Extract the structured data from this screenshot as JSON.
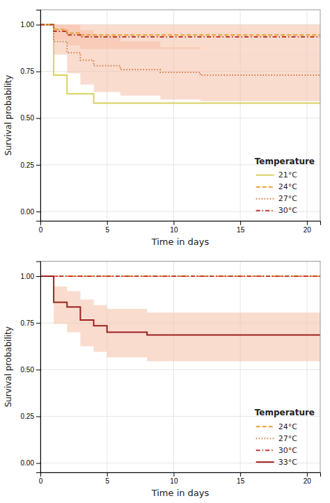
{
  "chart_data": [
    {
      "type": "line",
      "xlabel": "Time in days",
      "ylabel": "Survival probability",
      "xlim": [
        0,
        21
      ],
      "ylim": [
        -0.05,
        1.08
      ],
      "xticks": [
        0,
        5,
        10,
        15,
        20
      ],
      "yticks": [
        {
          "value": 0.0,
          "label": "0.00"
        },
        0.25,
        {
          "value": 0.5,
          "label": "0.50"
        },
        0.75,
        {
          "value": 1.0,
          "label": "1.00"
        }
      ],
      "grid": true,
      "legend": "lower right",
      "legend_title": "Temperature",
      "series": [
        {
          "name": "21°C",
          "color": "#d9d160",
          "line_style": "solid",
          "x": [
            0,
            1,
            1,
            2,
            2,
            4,
            4,
            21
          ],
          "values": [
            1.0,
            1.0,
            0.73,
            0.73,
            0.63,
            0.63,
            0.58,
            0.58
          ]
        },
        {
          "name": "24°C",
          "color": "#e8a030",
          "line_style": "dashed",
          "x": [
            0,
            1,
            1,
            2,
            2,
            3,
            3,
            21
          ],
          "values": [
            1.0,
            1.0,
            0.975,
            0.975,
            0.955,
            0.955,
            0.945,
            0.945
          ]
        },
        {
          "name": "27°C",
          "color": "#d4783c",
          "line_style": "dotted",
          "x": [
            0,
            1,
            1,
            2,
            2,
            3,
            3,
            4,
            4,
            6,
            6,
            9,
            9,
            12,
            12,
            21
          ],
          "values": [
            1.0,
            1.0,
            0.91,
            0.91,
            0.85,
            0.85,
            0.81,
            0.81,
            0.78,
            0.78,
            0.76,
            0.76,
            0.745,
            0.745,
            0.73,
            0.73
          ],
          "ci_x": [
            0,
            1,
            2,
            3,
            4,
            6,
            9,
            12,
            21
          ],
          "ci_upper": [
            1.0,
            1.0,
            1.0,
            0.97,
            0.94,
            0.91,
            0.88,
            0.87,
            0.86
          ],
          "ci_lower": [
            1.0,
            0.84,
            0.74,
            0.68,
            0.64,
            0.62,
            0.6,
            0.59,
            0.58
          ],
          "ci_color": "#f5c0a8"
        },
        {
          "name": "30°C",
          "color": "#c0392b",
          "line_style": "dashdot",
          "x": [
            0,
            1,
            1,
            2,
            2,
            3,
            3,
            21
          ],
          "values": [
            1.0,
            1.0,
            0.965,
            0.965,
            0.945,
            0.945,
            0.935,
            0.935
          ],
          "ci_x": [
            0,
            1,
            2,
            3,
            21
          ],
          "ci_upper": [
            1.0,
            1.0,
            1.0,
            1.0,
            1.0
          ],
          "ci_lower": [
            1.0,
            0.92,
            0.89,
            0.87,
            0.86
          ],
          "ci_color": "#f5c0a8"
        }
      ]
    },
    {
      "type": "line",
      "xlabel": "Time in days",
      "ylabel": "Survival probability",
      "xlim": [
        0,
        21
      ],
      "ylim": [
        -0.05,
        1.08
      ],
      "xticks": [
        0,
        5,
        10,
        15,
        20
      ],
      "yticks": [
        {
          "value": 0.0,
          "label": "0.00"
        },
        0.25,
        {
          "value": 0.5,
          "label": "0.50"
        },
        0.75,
        {
          "value": 1.0,
          "label": "1.00"
        }
      ],
      "grid": true,
      "legend": "lower right",
      "legend_title": "Temperature",
      "series": [
        {
          "name": "24°C",
          "color": "#e8a030",
          "line_style": "dashed",
          "x": [
            0,
            21
          ],
          "values": [
            1.0,
            1.0
          ]
        },
        {
          "name": "27°C",
          "color": "#d4783c",
          "line_style": "dotted",
          "x": [
            0,
            21
          ],
          "values": [
            1.0,
            1.0
          ]
        },
        {
          "name": "30°C",
          "color": "#c0392b",
          "line_style": "dashdot",
          "x": [
            0,
            1,
            1,
            21
          ],
          "values": [
            1.0,
            1.0,
            1.0,
            1.0
          ]
        },
        {
          "name": "33°C",
          "color": "#9b2020",
          "line_style": "solid",
          "x": [
            0,
            1,
            1,
            2,
            2,
            3,
            3,
            4,
            4,
            5,
            5,
            8,
            8,
            21
          ],
          "values": [
            1.0,
            1.0,
            0.86,
            0.86,
            0.835,
            0.835,
            0.765,
            0.765,
            0.735,
            0.735,
            0.7,
            0.7,
            0.685,
            0.685
          ],
          "ci_x": [
            0,
            1,
            2,
            3,
            4,
            5,
            8,
            21
          ],
          "ci_upper": [
            1.0,
            0.945,
            0.92,
            0.875,
            0.845,
            0.825,
            0.805,
            0.805
          ],
          "ci_lower": [
            1.0,
            0.745,
            0.7,
            0.625,
            0.595,
            0.565,
            0.545,
            0.545
          ],
          "ci_color": "#f5c0a8"
        }
      ]
    }
  ]
}
